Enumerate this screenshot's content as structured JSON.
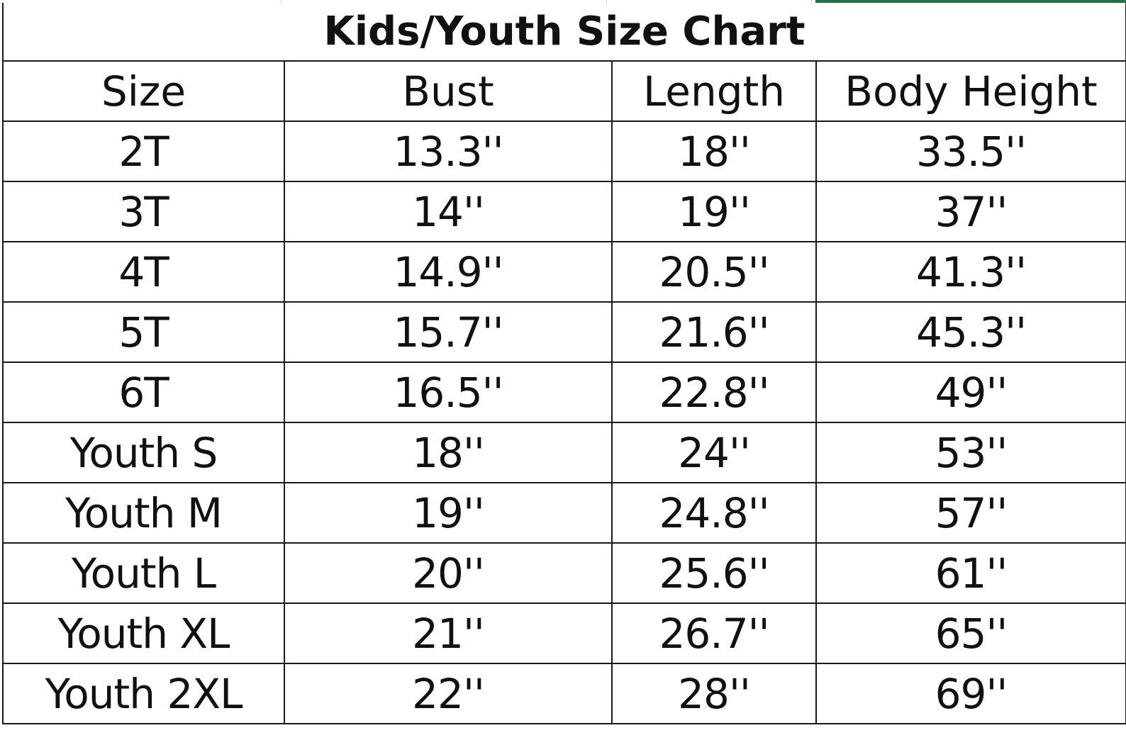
{
  "title": "Kids/Youth Size Chart",
  "colors": {
    "grid": "#1a1a1a",
    "selection": "#217346",
    "text": "#111111"
  },
  "columns": [
    "Size",
    "Bust",
    "Length",
    "Body Height"
  ],
  "rows": [
    {
      "size": "2T",
      "bust": "13.3''",
      "length": "18''",
      "height": "33.5''"
    },
    {
      "size": "3T",
      "bust": "14''",
      "length": "19''",
      "height": "37''"
    },
    {
      "size": "4T",
      "bust": "14.9''",
      "length": "20.5''",
      "height": "41.3''"
    },
    {
      "size": "5T",
      "bust": "15.7''",
      "length": "21.6''",
      "height": "45.3''"
    },
    {
      "size": "6T",
      "bust": "16.5''",
      "length": "22.8''",
      "height": "49''"
    },
    {
      "size": "Youth S",
      "bust": "18''",
      "length": "24''",
      "height": "53''"
    },
    {
      "size": "Youth M",
      "bust": "19''",
      "length": "24.8''",
      "height": "57''"
    },
    {
      "size": "Youth L",
      "bust": "20''",
      "length": "25.6''",
      "height": "61''"
    },
    {
      "size": "Youth XL",
      "bust": "21''",
      "length": "26.7''",
      "height": "65''"
    },
    {
      "size": "Youth 2XL",
      "bust": "22''",
      "length": "28''",
      "height": "69''"
    }
  ]
}
